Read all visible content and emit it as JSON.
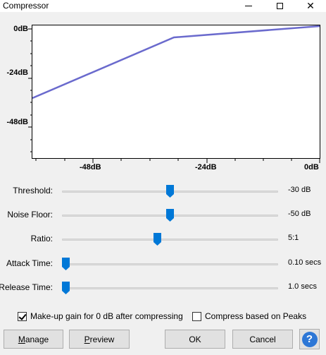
{
  "window": {
    "title": "Compressor"
  },
  "graph": {
    "y_ticks": [
      "0dB",
      "-24dB",
      "-48dB"
    ],
    "x_ticks": [
      "-48dB",
      "-24dB",
      "0dB"
    ],
    "line_color": "#6a6acd"
  },
  "sliders": [
    {
      "name": "threshold",
      "label": "Threshold:",
      "value": "-30 dB",
      "fraction": 0.5
    },
    {
      "name": "noise-floor",
      "label": "Noise Floor:",
      "value": "-50 dB",
      "fraction": 0.5
    },
    {
      "name": "ratio",
      "label": "Ratio:",
      "value": "5:1",
      "fraction": 0.44
    },
    {
      "name": "attack-time",
      "label": "Attack Time:",
      "value": "0.10 secs",
      "fraction": 0.0
    },
    {
      "name": "release-time",
      "label": "Release Time:",
      "value": "1.0 secs",
      "fraction": 0.0
    }
  ],
  "options": {
    "makeup_gain": {
      "label": "Make-up gain for 0 dB after compressing",
      "checked": true
    },
    "peaks": {
      "label": "Compress based on Peaks",
      "checked": false
    }
  },
  "buttons": {
    "manage": {
      "key": "M",
      "rest": "anage"
    },
    "preview": {
      "key": "P",
      "rest": "review"
    },
    "ok": "OK",
    "cancel": "Cancel",
    "help": "?"
  },
  "colors": {
    "accent": "#0078d7",
    "help": "#2d77d6"
  }
}
